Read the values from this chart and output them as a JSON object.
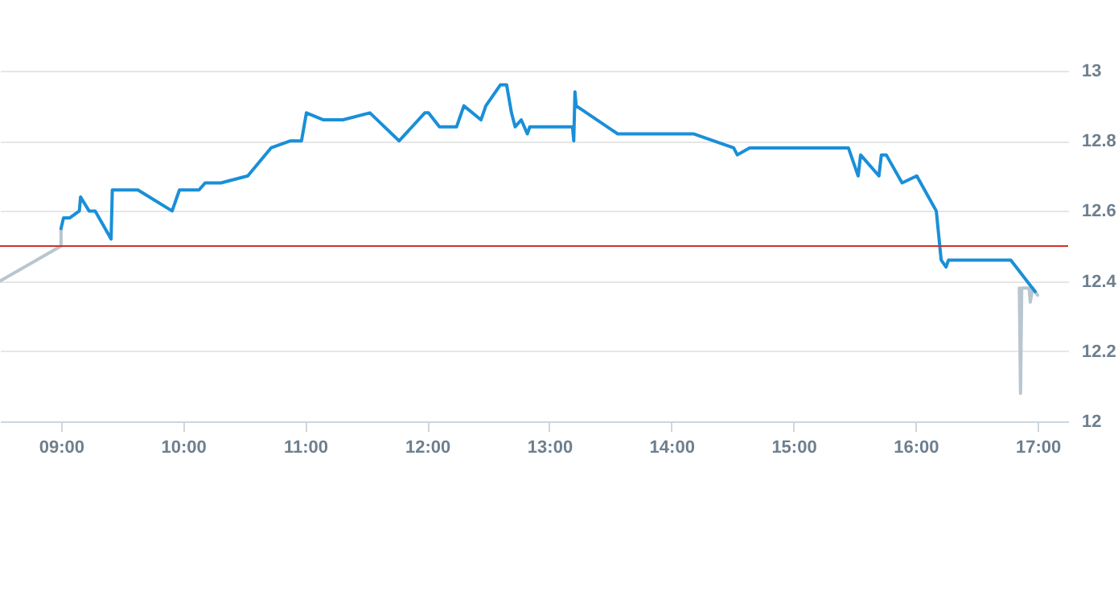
{
  "chart_data": {
    "type": "line",
    "xlim": [
      8.5,
      17.25
    ],
    "ylim": [
      12,
      13
    ],
    "xticks": [
      {
        "value": 9,
        "label": "09:00"
      },
      {
        "value": 10,
        "label": "10:00"
      },
      {
        "value": 11,
        "label": "11:00"
      },
      {
        "value": 12,
        "label": "12:00"
      },
      {
        "value": 13,
        "label": "13:00"
      },
      {
        "value": 14,
        "label": "14:00"
      },
      {
        "value": 15,
        "label": "15:00"
      },
      {
        "value": 16,
        "label": "16:00"
      },
      {
        "value": 17,
        "label": "17:00"
      }
    ],
    "yticks": [
      12,
      12.2,
      12.4,
      12.6,
      12.8,
      13
    ],
    "grid": "y",
    "line_style": "solid",
    "marker": "none",
    "ref_lines": [
      {
        "axis": "y",
        "value": 12.5,
        "color": "#d0312d"
      }
    ],
    "series": [
      {
        "color": "#b9c6cf",
        "x": [
          8.5,
          9.0,
          9.0
        ],
        "values": [
          12.4,
          12.5,
          12.55
        ]
      },
      {
        "color": "#b9c6cf",
        "x": [
          16.85,
          16.86,
          16.87,
          16.93,
          16.94,
          16.96,
          17.0
        ],
        "values": [
          12.38,
          12.08,
          12.38,
          12.38,
          12.34,
          12.38,
          12.36
        ]
      },
      {
        "color": "#1a8fd8",
        "x": [
          9.0,
          9.02,
          9.07,
          9.15,
          9.16,
          9.23,
          9.28,
          9.41,
          9.42,
          9.63,
          9.91,
          9.97,
          10.13,
          10.18,
          10.31,
          10.53,
          10.72,
          10.88,
          10.97,
          11.01,
          11.15,
          11.31,
          11.53,
          11.77,
          11.98,
          12.01,
          12.1,
          12.24,
          12.3,
          12.44,
          12.48,
          12.6,
          12.65,
          12.69,
          12.72,
          12.77,
          12.82,
          12.84,
          13.19,
          13.2,
          13.21,
          13.22,
          13.56,
          14.18,
          14.51,
          14.54,
          14.64,
          15.45,
          15.53,
          15.55,
          15.7,
          15.72,
          15.76,
          15.89,
          16.01,
          16.17,
          16.21,
          16.25,
          16.27,
          16.78,
          16.98
        ],
        "values": [
          12.55,
          12.58,
          12.58,
          12.6,
          12.64,
          12.6,
          12.6,
          12.52,
          12.66,
          12.66,
          12.6,
          12.66,
          12.66,
          12.68,
          12.68,
          12.7,
          12.78,
          12.8,
          12.8,
          12.88,
          12.86,
          12.86,
          12.88,
          12.8,
          12.88,
          12.88,
          12.84,
          12.84,
          12.9,
          12.86,
          12.9,
          12.96,
          12.96,
          12.88,
          12.84,
          12.86,
          12.82,
          12.84,
          12.84,
          12.8,
          12.94,
          12.9,
          12.82,
          12.82,
          12.78,
          12.76,
          12.78,
          12.78,
          12.7,
          12.76,
          12.7,
          12.76,
          12.76,
          12.68,
          12.7,
          12.6,
          12.46,
          12.44,
          12.46,
          12.46,
          12.37
        ]
      }
    ]
  }
}
